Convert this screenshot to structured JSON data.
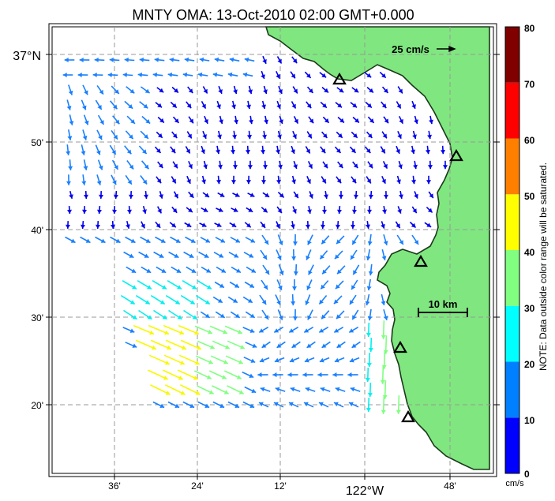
{
  "title": "MNTY OMA: 13-Oct-2010 02:00 GMT+0.000",
  "scale": {
    "speed_label": "25 cm/s",
    "distance_label": "10 km"
  },
  "axes": {
    "lat_ticks": [
      "37°N",
      "50'",
      "40'",
      "30'",
      "20'"
    ],
    "lon_ticks": [
      "36'",
      "24'",
      "12'",
      "122°W",
      "48'"
    ]
  },
  "colorbar": {
    "ticks": [
      "80",
      "70",
      "60",
      "50",
      "40",
      "30",
      "20",
      "10",
      "0"
    ],
    "unit": "cm/s",
    "note": "NOTE: Data outside color range will be saturated.",
    "colors": [
      "#0000ff",
      "#0080ff",
      "#00ffff",
      "#80ff80",
      "#ffff00",
      "#ff8000",
      "#ff0000",
      "#800000"
    ]
  },
  "colors": {
    "land": "#80e680",
    "coast": "#1a3a1a",
    "grid": "#aaaaaa",
    "frame": "#000000"
  },
  "stations": [
    "station-1",
    "station-2",
    "station-3",
    "station-4",
    "station-5"
  ]
}
